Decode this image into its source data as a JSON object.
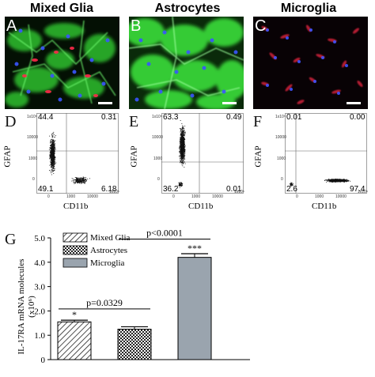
{
  "figure": {
    "columns": [
      "Mixed Glia",
      "Astrocytes",
      "Microglia"
    ],
    "micro_labels": [
      "A",
      "B",
      "C"
    ],
    "flow_labels": [
      "D",
      "E",
      "F"
    ],
    "flow_ylabel": "GFAP",
    "flow_xlabel": "CD11b",
    "flow_axis_ticks_y": [
      "1x10⁵",
      "10000",
      "1000",
      "0"
    ],
    "flow_axis_ticks_x": [
      "0",
      "1000",
      "10000",
      "1x10⁵"
    ],
    "flow_quadrants": [
      {
        "ul": "44.4",
        "ur": "0.31",
        "ll": "49.1",
        "lr": "6.18"
      },
      {
        "ul": "63.3",
        "ur": "0.49",
        "ll": "36.2",
        "lr": "0.01"
      },
      {
        "ul": "0.01",
        "ur": "0.00",
        "ll": "2.6",
        "lr": "97.4"
      }
    ],
    "bar_panel_label": "G"
  },
  "chart_data": {
    "type": "bar",
    "categories": [
      "Mixed Glia",
      "Astrocytes",
      "Microglia"
    ],
    "values": [
      1.55,
      1.25,
      4.2
    ],
    "errors": [
      0.07,
      0.1,
      0.15
    ],
    "ylabel": "IL-17RA mRNA molecules (x10⁶)",
    "ylim": [
      0,
      5
    ],
    "yticks": [
      "0",
      "1.0",
      "2.0",
      "3.0",
      "4.0",
      "5.0"
    ],
    "legend": [
      "Mixed Glia",
      "Astrocytes",
      "Microglia"
    ],
    "legend_placement": "top-left",
    "annotations": [
      "*",
      "",
      "***"
    ],
    "comparisons": [
      {
        "label": "p=0.0329",
        "from": 0,
        "to": 1
      },
      {
        "label": "p<0.0001",
        "from": 1,
        "to": 2
      }
    ],
    "colors": [
      "#ffffff",
      "#ffffff",
      "#9aa4ae"
    ]
  }
}
